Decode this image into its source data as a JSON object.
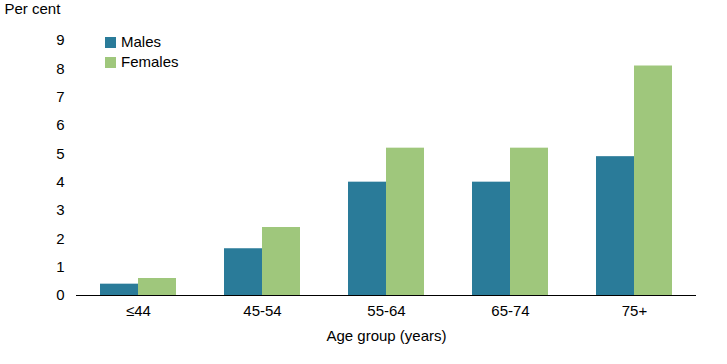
{
  "chart_data": {
    "type": "bar",
    "y_label": "Per cent",
    "x_label": "Age group (years)",
    "categories": [
      "≤44",
      "45-54",
      "55-64",
      "65-74",
      "75+"
    ],
    "series": [
      {
        "name": "Males",
        "color": "#2a7b99",
        "values": [
          0.4,
          1.65,
          4.0,
          4.0,
          4.9
        ]
      },
      {
        "name": "Females",
        "color": "#9fc77c",
        "values": [
          0.6,
          2.4,
          5.2,
          5.2,
          8.1
        ]
      }
    ],
    "ylim": [
      0,
      9
    ],
    "yticks": [
      0,
      1,
      2,
      3,
      4,
      5,
      6,
      7,
      8,
      9
    ],
    "grid": false,
    "legend": "top-left"
  }
}
